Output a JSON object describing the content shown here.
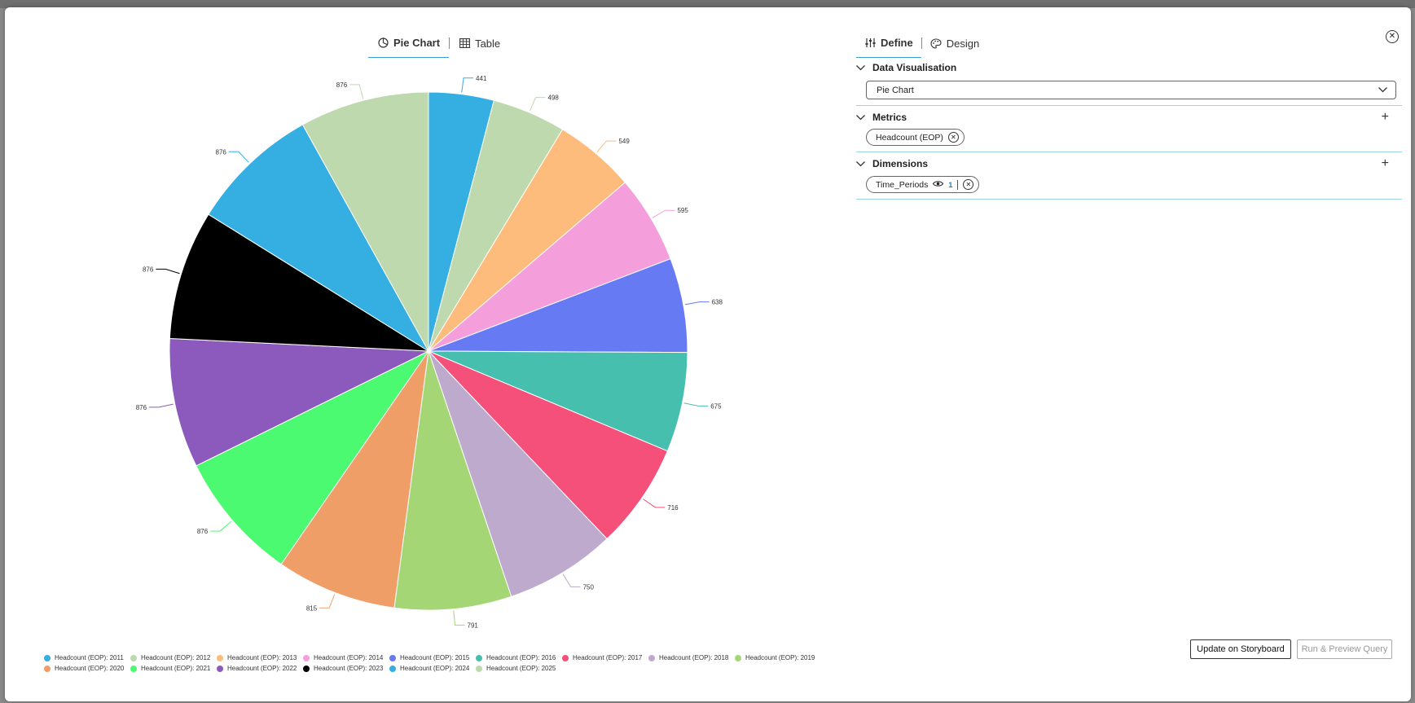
{
  "view_tabs": {
    "pie_label": "Pie Chart",
    "table_label": "Table",
    "active": "Pie Chart"
  },
  "panel_tabs": {
    "define_label": "Define",
    "design_label": "Design",
    "active": "Define"
  },
  "sections": {
    "data_visualisation": {
      "title": "Data Visualisation",
      "selected": "Pie Chart"
    },
    "metrics": {
      "title": "Metrics",
      "items": [
        "Headcount (EOP)"
      ]
    },
    "dimensions": {
      "title": "Dimensions",
      "items": [
        {
          "label": "Time_Periods",
          "badge": "1"
        }
      ]
    }
  },
  "buttons": {
    "update": "Update on Storyboard",
    "run": "Run & Preview Query"
  },
  "icons": {
    "close": "close-circle-icon",
    "chevron": "chevron-down-icon",
    "add": "plus-icon",
    "eye": "eye-icon"
  },
  "chart_data": {
    "type": "pie",
    "series_name": "Headcount (EOP)",
    "categories": [
      "Headcount (EOP): 2011",
      "Headcount (EOP): 2012",
      "Headcount (EOP): 2013",
      "Headcount (EOP): 2014",
      "Headcount (EOP): 2015",
      "Headcount (EOP): 2016",
      "Headcount (EOP): 2017",
      "Headcount (EOP): 2018",
      "Headcount (EOP): 2019",
      "Headcount (EOP): 2020",
      "Headcount (EOP): 2021",
      "Headcount (EOP): 2022",
      "Headcount (EOP): 2023",
      "Headcount (EOP): 2024",
      "Headcount (EOP): 2025"
    ],
    "values": [
      441,
      498,
      549,
      595,
      638,
      675,
      716,
      750,
      791,
      815,
      876,
      876,
      876,
      876,
      876
    ],
    "colors": [
      "#35aee2",
      "#bdd9ad",
      "#fdbc7c",
      "#f49fdc",
      "#667bf3",
      "#47bfaf",
      "#f4507a",
      "#bdaacd",
      "#a4d675",
      "#ef9e68",
      "#4cfa71",
      "#8c59bd",
      "#000000",
      "#35aee2",
      "#bdd9ad"
    ],
    "legend_position": "bottom-left"
  }
}
